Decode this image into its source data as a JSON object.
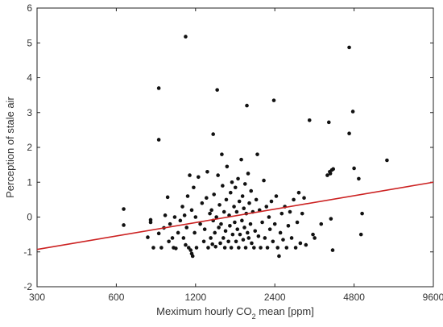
{
  "chart_data": {
    "type": "scatter",
    "title": "",
    "xlabel_parts": [
      "Meximum hourly CO",
      "2",
      " mean [ppm]"
    ],
    "ylabel": "Perception of stale air",
    "x_scale": "log2",
    "xlim": [
      300,
      9600
    ],
    "ylim": [
      -2,
      6
    ],
    "x_ticks": [
      300,
      600,
      1200,
      2400,
      4800,
      9600
    ],
    "x_tick_labels": [
      "300",
      "600",
      "1200",
      "2400",
      "4800",
      "9600"
    ],
    "y_ticks": [
      -2,
      -1,
      0,
      1,
      2,
      3,
      4,
      5,
      6
    ],
    "y_tick_labels": [
      "-2",
      "-1",
      "0",
      "1",
      "2",
      "3",
      "4",
      "5",
      "6"
    ],
    "grid": false,
    "point_color": "#111111",
    "trend_color": "#cc2222",
    "trend_line": {
      "x": [
        300,
        9600
      ],
      "y": [
        -0.93,
        1.0
      ]
    },
    "points": [
      {
        "x": 640,
        "y": 0.23
      },
      {
        "x": 640,
        "y": -0.23
      },
      {
        "x": 790,
        "y": -0.58
      },
      {
        "x": 810,
        "y": -0.15
      },
      {
        "x": 810,
        "y": -0.08
      },
      {
        "x": 830,
        "y": -0.88
      },
      {
        "x": 870,
        "y": 3.7
      },
      {
        "x": 870,
        "y": 2.22
      },
      {
        "x": 870,
        "y": -0.47
      },
      {
        "x": 890,
        "y": -0.88
      },
      {
        "x": 910,
        "y": -0.31
      },
      {
        "x": 920,
        "y": 0.05
      },
      {
        "x": 940,
        "y": 0.57
      },
      {
        "x": 950,
        "y": -0.7
      },
      {
        "x": 960,
        "y": -0.2
      },
      {
        "x": 980,
        "y": -0.6
      },
      {
        "x": 990,
        "y": -0.88
      },
      {
        "x": 1000,
        "y": 0.0
      },
      {
        "x": 1010,
        "y": -0.9
      },
      {
        "x": 1030,
        "y": -0.45
      },
      {
        "x": 1050,
        "y": -0.1
      },
      {
        "x": 1070,
        "y": 0.3
      },
      {
        "x": 1080,
        "y": -0.6
      },
      {
        "x": 1090,
        "y": 0.05
      },
      {
        "x": 1100,
        "y": 5.18
      },
      {
        "x": 1100,
        "y": -0.8
      },
      {
        "x": 1110,
        "y": -0.3
      },
      {
        "x": 1120,
        "y": 0.6
      },
      {
        "x": 1130,
        "y": -0.88
      },
      {
        "x": 1140,
        "y": 1.2
      },
      {
        "x": 1150,
        "y": -0.95
      },
      {
        "x": 1160,
        "y": -1.05
      },
      {
        "x": 1160,
        "y": 0.2
      },
      {
        "x": 1170,
        "y": -1.12
      },
      {
        "x": 1180,
        "y": 0.85
      },
      {
        "x": 1190,
        "y": -0.45
      },
      {
        "x": 1200,
        "y": 0.0
      },
      {
        "x": 1210,
        "y": -0.88
      },
      {
        "x": 1230,
        "y": 1.15
      },
      {
        "x": 1250,
        "y": -0.2
      },
      {
        "x": 1270,
        "y": 0.4
      },
      {
        "x": 1290,
        "y": -0.7
      },
      {
        "x": 1300,
        "y": -0.35
      },
      {
        "x": 1320,
        "y": 0.55
      },
      {
        "x": 1330,
        "y": 1.3
      },
      {
        "x": 1340,
        "y": -0.88
      },
      {
        "x": 1360,
        "y": 0.1
      },
      {
        "x": 1370,
        "y": -0.6
      },
      {
        "x": 1380,
        "y": 0.2
      },
      {
        "x": 1390,
        "y": -0.78
      },
      {
        "x": 1400,
        "y": 2.38
      },
      {
        "x": 1400,
        "y": -0.1
      },
      {
        "x": 1410,
        "y": 0.65
      },
      {
        "x": 1420,
        "y": -0.45
      },
      {
        "x": 1430,
        "y": -0.85
      },
      {
        "x": 1440,
        "y": 0.0
      },
      {
        "x": 1450,
        "y": 3.65
      },
      {
        "x": 1460,
        "y": 1.2
      },
      {
        "x": 1470,
        "y": -0.3
      },
      {
        "x": 1480,
        "y": 0.35
      },
      {
        "x": 1490,
        "y": -0.75
      },
      {
        "x": 1500,
        "y": -0.2
      },
      {
        "x": 1510,
        "y": 1.8
      },
      {
        "x": 1520,
        "y": 0.9
      },
      {
        "x": 1530,
        "y": -0.6
      },
      {
        "x": 1540,
        "y": 0.15
      },
      {
        "x": 1550,
        "y": -0.88
      },
      {
        "x": 1560,
        "y": -0.4
      },
      {
        "x": 1570,
        "y": 0.5
      },
      {
        "x": 1580,
        "y": 1.45
      },
      {
        "x": 1600,
        "y": -0.7
      },
      {
        "x": 1610,
        "y": 0.05
      },
      {
        "x": 1620,
        "y": -0.25
      },
      {
        "x": 1630,
        "y": 0.7
      },
      {
        "x": 1640,
        "y": -0.88
      },
      {
        "x": 1650,
        "y": 1.0
      },
      {
        "x": 1660,
        "y": -0.5
      },
      {
        "x": 1680,
        "y": 0.3
      },
      {
        "x": 1690,
        "y": -0.15
      },
      {
        "x": 1700,
        "y": 0.85
      },
      {
        "x": 1710,
        "y": -0.7
      },
      {
        "x": 1720,
        "y": 0.15
      },
      {
        "x": 1730,
        "y": -0.35
      },
      {
        "x": 1740,
        "y": 1.1
      },
      {
        "x": 1750,
        "y": -0.88
      },
      {
        "x": 1760,
        "y": 0.45
      },
      {
        "x": 1770,
        "y": -0.5
      },
      {
        "x": 1790,
        "y": 1.65
      },
      {
        "x": 1800,
        "y": -0.1
      },
      {
        "x": 1810,
        "y": 0.6
      },
      {
        "x": 1820,
        "y": -0.65
      },
      {
        "x": 1830,
        "y": 0.25
      },
      {
        "x": 1840,
        "y": -0.3
      },
      {
        "x": 1850,
        "y": 0.95
      },
      {
        "x": 1860,
        "y": -0.88
      },
      {
        "x": 1870,
        "y": 0.1
      },
      {
        "x": 1880,
        "y": 3.2
      },
      {
        "x": 1890,
        "y": -0.45
      },
      {
        "x": 1900,
        "y": 1.25
      },
      {
        "x": 1910,
        "y": -0.6
      },
      {
        "x": 1920,
        "y": 0.4
      },
      {
        "x": 1940,
        "y": -0.2
      },
      {
        "x": 1950,
        "y": 0.75
      },
      {
        "x": 1960,
        "y": -0.75
      },
      {
        "x": 1980,
        "y": 0.15
      },
      {
        "x": 2000,
        "y": -0.88
      },
      {
        "x": 2020,
        "y": -0.4
      },
      {
        "x": 2040,
        "y": 0.5
      },
      {
        "x": 2060,
        "y": 1.8
      },
      {
        "x": 2080,
        "y": -0.55
      },
      {
        "x": 2100,
        "y": 0.2
      },
      {
        "x": 2120,
        "y": -0.88
      },
      {
        "x": 2150,
        "y": -0.15
      },
      {
        "x": 2180,
        "y": 1.05
      },
      {
        "x": 2200,
        "y": -0.6
      },
      {
        "x": 2230,
        "y": 0.3
      },
      {
        "x": 2250,
        "y": -0.88
      },
      {
        "x": 2280,
        "y": 0.0
      },
      {
        "x": 2300,
        "y": -0.35
      },
      {
        "x": 2330,
        "y": 0.45
      },
      {
        "x": 2360,
        "y": -0.7
      },
      {
        "x": 2380,
        "y": 3.35
      },
      {
        "x": 2400,
        "y": -0.2
      },
      {
        "x": 2430,
        "y": 0.6
      },
      {
        "x": 2460,
        "y": -0.88
      },
      {
        "x": 2490,
        "y": -1.12
      },
      {
        "x": 2520,
        "y": -0.45
      },
      {
        "x": 2550,
        "y": 0.1
      },
      {
        "x": 2580,
        "y": -0.65
      },
      {
        "x": 2620,
        "y": 0.3
      },
      {
        "x": 2660,
        "y": -0.88
      },
      {
        "x": 2700,
        "y": -0.25
      },
      {
        "x": 2740,
        "y": 0.15
      },
      {
        "x": 2780,
        "y": -0.6
      },
      {
        "x": 2830,
        "y": 0.5
      },
      {
        "x": 2880,
        "y": -0.88
      },
      {
        "x": 2920,
        "y": -0.15
      },
      {
        "x": 2960,
        "y": 0.7
      },
      {
        "x": 3000,
        "y": -0.75
      },
      {
        "x": 3050,
        "y": 0.1
      },
      {
        "x": 3100,
        "y": 0.55
      },
      {
        "x": 3150,
        "y": -0.8
      },
      {
        "x": 3250,
        "y": 2.78
      },
      {
        "x": 3350,
        "y": -0.5
      },
      {
        "x": 3400,
        "y": -0.6
      },
      {
        "x": 3600,
        "y": -0.2
      },
      {
        "x": 3800,
        "y": 1.2
      },
      {
        "x": 3850,
        "y": 2.72
      },
      {
        "x": 3880,
        "y": 1.3
      },
      {
        "x": 3900,
        "y": 1.25
      },
      {
        "x": 3920,
        "y": -0.05
      },
      {
        "x": 3950,
        "y": 1.35
      },
      {
        "x": 3980,
        "y": -0.95
      },
      {
        "x": 4000,
        "y": 1.38
      },
      {
        "x": 4600,
        "y": 4.87
      },
      {
        "x": 4600,
        "y": 2.4
      },
      {
        "x": 4750,
        "y": 3.03
      },
      {
        "x": 4800,
        "y": 1.4
      },
      {
        "x": 5000,
        "y": 1.1
      },
      {
        "x": 5100,
        "y": -0.5
      },
      {
        "x": 5150,
        "y": 0.1
      },
      {
        "x": 6400,
        "y": 1.63
      }
    ]
  }
}
